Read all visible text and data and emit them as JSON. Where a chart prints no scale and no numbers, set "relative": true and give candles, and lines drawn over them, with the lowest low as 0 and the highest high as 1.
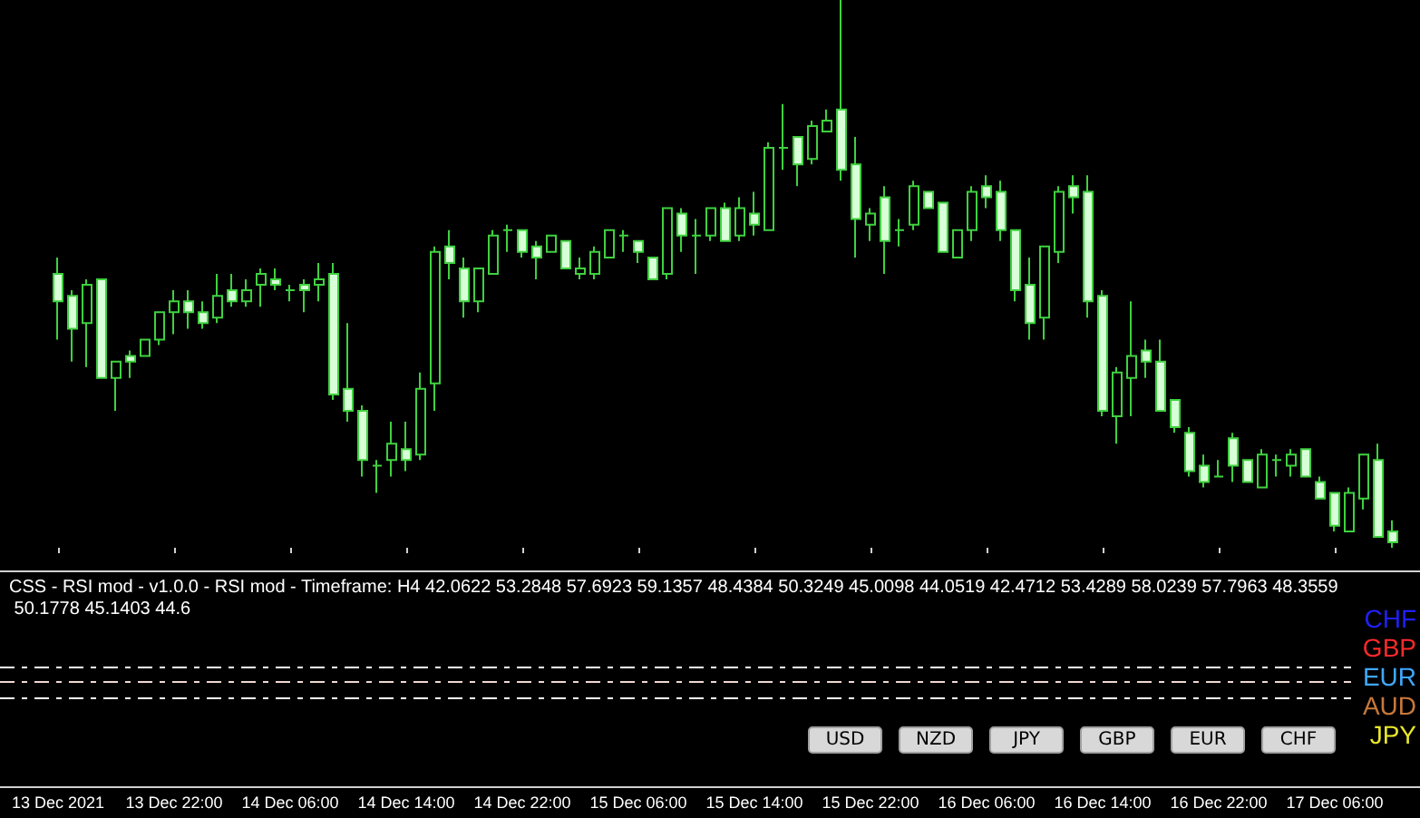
{
  "chart_data": {
    "type": "candlestick",
    "relative": true,
    "color": "#3fd13f",
    "grid": false,
    "subtitle": "CSS - RSI mod - v1.0.0 - RSI mod - Timeframe: H4 42.0622 53.2848 57.6923 59.1357 48.4384 50.3249 45.0098 44.0519 42.4712 53.4289 58.0239 57.7963 48.3559 50.1778 45.1403 44.6",
    "annotations": [
      "CHF",
      "GBP",
      "EUR",
      "AUD",
      "JPY",
      "USD",
      "NZD",
      "JPY",
      "GBP",
      "EUR",
      "CHF"
    ],
    "categories": [
      "13 Dec 2021",
      null,
      null,
      null,
      null,
      null,
      null,
      null,
      "13 Dec 22:00",
      null,
      null,
      null,
      null,
      null,
      null,
      null,
      "14 Dec 06:00",
      null,
      null,
      null,
      null,
      null,
      null,
      null,
      "14 Dec 14:00",
      null,
      null,
      null,
      null,
      null,
      null,
      null,
      "14 Dec 22:00",
      null,
      null,
      null,
      null,
      null,
      null,
      null,
      "15 Dec 06:00",
      null,
      null,
      null,
      null,
      null,
      null,
      null,
      "15 Dec 14:00",
      null,
      null,
      null,
      null,
      null,
      null,
      null,
      "15 Dec 22:00",
      null,
      null,
      null,
      null,
      null,
      null,
      null,
      "16 Dec 06:00",
      null,
      null,
      null,
      null,
      null,
      null,
      null,
      "16 Dec 14:00",
      null,
      null,
      null,
      null,
      null,
      null,
      null,
      "16 Dec 22:00",
      null,
      null,
      null,
      null,
      null,
      null,
      null,
      "17 Dec 06:00",
      null,
      null,
      null,
      null
    ],
    "ohlc": [
      [
        0.5,
        0.53,
        0.38,
        0.45
      ],
      [
        0.46,
        0.47,
        0.34,
        0.4
      ],
      [
        0.41,
        0.49,
        0.33,
        0.48
      ],
      [
        0.49,
        0.49,
        0.31,
        0.31
      ],
      [
        0.31,
        0.34,
        0.25,
        0.34
      ],
      [
        0.35,
        0.36,
        0.31,
        0.34
      ],
      [
        0.35,
        0.38,
        0.35,
        0.38
      ],
      [
        0.38,
        0.43,
        0.37,
        0.43
      ],
      [
        0.43,
        0.47,
        0.39,
        0.45
      ],
      [
        0.45,
        0.47,
        0.4,
        0.43
      ],
      [
        0.43,
        0.45,
        0.4,
        0.41
      ],
      [
        0.42,
        0.5,
        0.41,
        0.46
      ],
      [
        0.47,
        0.5,
        0.44,
        0.45
      ],
      [
        0.45,
        0.49,
        0.44,
        0.47
      ],
      [
        0.48,
        0.51,
        0.44,
        0.5
      ],
      [
        0.49,
        0.51,
        0.47,
        0.48
      ],
      [
        0.47,
        0.48,
        0.45,
        0.47
      ],
      [
        0.48,
        0.49,
        0.43,
        0.47
      ],
      [
        0.48,
        0.52,
        0.45,
        0.49
      ],
      [
        0.5,
        0.52,
        0.27,
        0.28
      ],
      [
        0.29,
        0.41,
        0.23,
        0.25
      ],
      [
        0.25,
        0.26,
        0.13,
        0.16
      ],
      [
        0.15,
        0.16,
        0.1,
        0.15
      ],
      [
        0.16,
        0.23,
        0.13,
        0.19
      ],
      [
        0.18,
        0.23,
        0.14,
        0.16
      ],
      [
        0.17,
        0.32,
        0.16,
        0.29
      ],
      [
        0.3,
        0.55,
        0.25,
        0.54
      ],
      [
        0.55,
        0.58,
        0.49,
        0.52
      ],
      [
        0.51,
        0.53,
        0.42,
        0.45
      ],
      [
        0.45,
        0.51,
        0.43,
        0.51
      ],
      [
        0.5,
        0.58,
        0.5,
        0.57
      ],
      [
        0.58,
        0.59,
        0.54,
        0.58
      ],
      [
        0.58,
        0.58,
        0.53,
        0.54
      ],
      [
        0.55,
        0.56,
        0.49,
        0.53
      ],
      [
        0.54,
        0.57,
        0.54,
        0.57
      ],
      [
        0.56,
        0.56,
        0.51,
        0.51
      ],
      [
        0.5,
        0.53,
        0.49,
        0.51
      ],
      [
        0.5,
        0.55,
        0.49,
        0.54
      ],
      [
        0.53,
        0.58,
        0.53,
        0.58
      ],
      [
        0.57,
        0.58,
        0.54,
        0.57
      ],
      [
        0.56,
        0.56,
        0.52,
        0.54
      ],
      [
        0.53,
        0.53,
        0.49,
        0.49
      ],
      [
        0.5,
        0.62,
        0.49,
        0.62
      ],
      [
        0.61,
        0.62,
        0.54,
        0.57
      ],
      [
        0.57,
        0.6,
        0.5,
        0.57
      ],
      [
        0.57,
        0.62,
        0.56,
        0.62
      ],
      [
        0.62,
        0.63,
        0.56,
        0.56
      ],
      [
        0.57,
        0.64,
        0.56,
        0.62
      ],
      [
        0.61,
        0.65,
        0.57,
        0.59
      ],
      [
        0.58,
        0.74,
        0.58,
        0.73
      ],
      [
        0.73,
        0.81,
        0.69,
        0.73
      ],
      [
        0.75,
        0.75,
        0.66,
        0.7
      ],
      [
        0.71,
        0.78,
        0.7,
        0.77
      ],
      [
        0.76,
        0.8,
        0.76,
        0.78
      ],
      [
        0.8,
        1.0,
        0.67,
        0.69
      ],
      [
        0.7,
        0.75,
        0.53,
        0.6
      ],
      [
        0.59,
        0.62,
        0.56,
        0.61
      ],
      [
        0.64,
        0.66,
        0.5,
        0.56
      ],
      [
        0.58,
        0.6,
        0.55,
        0.58
      ],
      [
        0.59,
        0.67,
        0.58,
        0.66
      ],
      [
        0.65,
        0.65,
        0.62,
        0.62
      ],
      [
        0.63,
        0.63,
        0.54,
        0.54
      ],
      [
        0.53,
        0.58,
        0.53,
        0.58
      ],
      [
        0.58,
        0.66,
        0.56,
        0.65
      ],
      [
        0.66,
        0.68,
        0.62,
        0.64
      ],
      [
        0.65,
        0.67,
        0.56,
        0.58
      ],
      [
        0.58,
        0.58,
        0.45,
        0.47
      ],
      [
        0.48,
        0.53,
        0.38,
        0.41
      ],
      [
        0.42,
        0.55,
        0.38,
        0.55
      ],
      [
        0.54,
        0.66,
        0.52,
        0.65
      ],
      [
        0.66,
        0.68,
        0.61,
        0.64
      ],
      [
        0.65,
        0.68,
        0.42,
        0.45
      ],
      [
        0.46,
        0.47,
        0.24,
        0.25
      ],
      [
        0.24,
        0.33,
        0.19,
        0.32
      ],
      [
        0.31,
        0.45,
        0.24,
        0.35
      ],
      [
        0.36,
        0.38,
        0.31,
        0.34
      ],
      [
        0.34,
        0.38,
        0.25,
        0.25
      ],
      [
        0.27,
        0.27,
        0.21,
        0.22
      ],
      [
        0.21,
        0.22,
        0.13,
        0.14
      ],
      [
        0.15,
        0.17,
        0.11,
        0.12
      ],
      [
        0.13,
        0.16,
        0.13,
        0.13
      ],
      [
        0.2,
        0.21,
        0.12,
        0.15
      ],
      [
        0.16,
        0.16,
        0.12,
        0.12
      ],
      [
        0.11,
        0.18,
        0.11,
        0.17
      ],
      [
        0.16,
        0.17,
        0.13,
        0.16
      ],
      [
        0.15,
        0.18,
        0.13,
        0.17
      ],
      [
        0.18,
        0.18,
        0.13,
        0.13
      ],
      [
        0.12,
        0.13,
        0.09,
        0.09
      ],
      [
        0.1,
        0.1,
        0.03,
        0.04
      ],
      [
        0.03,
        0.11,
        0.03,
        0.1
      ],
      [
        0.09,
        0.17,
        0.07,
        0.17
      ],
      [
        0.16,
        0.19,
        0.02,
        0.02
      ],
      [
        0.03,
        0.05,
        0.0,
        0.01
      ]
    ]
  }
}
